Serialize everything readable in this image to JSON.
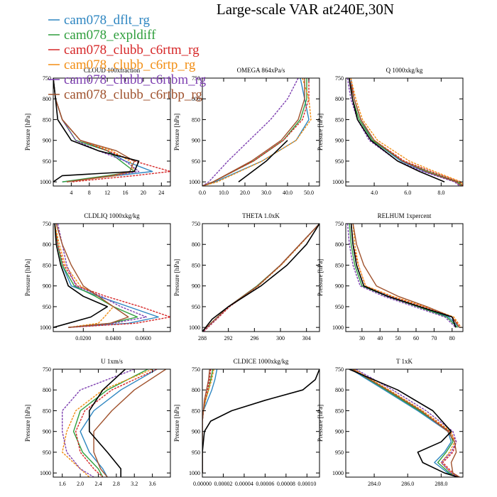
{
  "figure": {
    "title": "Large-scale VAR at240E,30N"
  },
  "legend": {
    "entries": [
      {
        "label": "cam078_dflt_rg",
        "color": "#2e86c1"
      },
      {
        "label": "cam078_expldiff",
        "color": "#2e9e3c"
      },
      {
        "label": "cam078_clubb_c6rtm_rg",
        "color": "#d62728"
      },
      {
        "label": "cam078_clubb_c6rtp_rg",
        "color": "#f28e14"
      },
      {
        "label": "cam078_clubb_c6rtbm_rg",
        "color": "#7d3fb0"
      },
      {
        "label": "cam078_clubb_c6rtbp_rg",
        "color": "#a0522d"
      }
    ],
    "obs_color": "#000000"
  },
  "chart_data": [
    {
      "type": "line",
      "title": "CLOUD 100xfraction",
      "ylabel": "Pressure [hPa]",
      "ylim": [
        750,
        1010
      ],
      "yticks": [
        750,
        800,
        850,
        900,
        950,
        1000
      ],
      "xlim": [
        0,
        26
      ],
      "xticks": [
        4,
        8,
        12,
        16,
        20,
        24
      ],
      "xtick_labels": [
        "4",
        "8",
        "12",
        "16",
        "20",
        "24"
      ],
      "levels": [
        750,
        800,
        850,
        900,
        925,
        950,
        975,
        985,
        1000
      ],
      "series": [
        {
          "values": [
            0,
            0.5,
            2,
            6,
            12,
            16,
            22,
            14,
            2
          ]
        },
        {
          "values": [
            0,
            0.5,
            2,
            5,
            12,
            15,
            18,
            12,
            2
          ]
        },
        {
          "values": [
            0,
            0.5,
            2,
            6,
            12,
            18,
            26,
            18,
            4
          ]
        },
        {
          "values": [
            0,
            0.5,
            2,
            6,
            13,
            17,
            18,
            14,
            3
          ]
        },
        {
          "values": [
            0,
            0.5,
            2,
            5,
            10,
            16,
            19,
            13,
            3
          ]
        },
        {
          "values": [
            0,
            0.5,
            2,
            6,
            14,
            18,
            17,
            13,
            3
          ]
        },
        {
          "values": [
            0,
            0.5,
            1,
            4,
            10,
            19,
            18,
            2,
            0
          ]
        }
      ]
    },
    {
      "type": "line",
      "title": "OMEGA 864xPa/s",
      "ylabel": "Pressure [hPa]",
      "ylim": [
        750,
        1010
      ],
      "yticks": [
        750,
        800,
        850,
        900,
        950,
        1000
      ],
      "xlim": [
        0,
        55
      ],
      "xticks": [
        0,
        10,
        20,
        30,
        40,
        50
      ],
      "xtick_labels": [
        "0.0",
        "10.0",
        "20.0",
        "30.0",
        "40.0",
        "50.0"
      ],
      "levels": [
        750,
        800,
        850,
        900,
        950,
        1000,
        1010
      ],
      "series": [
        {
          "values": [
            46,
            48,
            50,
            44,
            28,
            6,
            0
          ]
        },
        {
          "values": [
            49,
            49,
            46,
            38,
            24,
            5,
            0
          ]
        },
        {
          "values": [
            50,
            50,
            47,
            38,
            24,
            5,
            0
          ]
        },
        {
          "values": [
            47,
            50,
            51,
            44,
            28,
            7,
            0
          ]
        },
        {
          "values": [
            45,
            40,
            32,
            22,
            12,
            3,
            0
          ]
        },
        {
          "values": [
            48,
            48,
            45,
            37,
            23,
            5,
            0
          ]
        },
        {
          "values": [
            null,
            null,
            null,
            40,
            30,
            17,
            null
          ]
        }
      ]
    },
    {
      "type": "line",
      "title": "Q 1000xkg/kg",
      "ylabel": "Pressure [hPa]",
      "ylim": [
        750,
        1010
      ],
      "yticks": [
        750,
        800,
        850,
        900,
        950,
        1000
      ],
      "xlim": [
        2.3,
        9.3
      ],
      "xticks": [
        4,
        6,
        8
      ],
      "xtick_labels": [
        "4.0",
        "6.0",
        "8.0"
      ],
      "levels": [
        750,
        800,
        850,
        900,
        950,
        975,
        1000,
        1010
      ],
      "series": [
        {
          "values": [
            2.6,
            2.8,
            3.2,
            3.9,
            5.6,
            7.0,
            8.9,
            9.2
          ]
        },
        {
          "values": [
            2.5,
            2.7,
            3.1,
            3.9,
            5.7,
            7.2,
            9.0,
            9.3
          ]
        },
        {
          "values": [
            2.6,
            2.8,
            3.2,
            4.0,
            5.8,
            7.4,
            9.1,
            9.3
          ]
        },
        {
          "values": [
            2.6,
            2.9,
            3.3,
            4.2,
            6.1,
            7.6,
            9.2,
            9.3
          ]
        },
        {
          "values": [
            2.4,
            2.6,
            3.0,
            3.7,
            5.4,
            6.9,
            8.8,
            9.1
          ]
        },
        {
          "values": [
            2.5,
            2.8,
            3.2,
            4.0,
            5.7,
            7.1,
            8.9,
            9.2
          ]
        },
        {
          "values": [
            2.5,
            2.7,
            3.0,
            3.8,
            5.4,
            6.7,
            8.2,
            null
          ]
        }
      ]
    },
    {
      "type": "line",
      "title": "CLDLIQ 1000xkg/kg",
      "ylabel": "Pressure [hPa]",
      "ylim": [
        750,
        1010
      ],
      "yticks": [
        750,
        800,
        850,
        900,
        950,
        1000
      ],
      "xlim": [
        0,
        0.078
      ],
      "xticks": [
        0.02,
        0.04,
        0.06
      ],
      "xtick_labels": [
        "0.0200",
        "0.0400",
        "0.0600"
      ],
      "levels": [
        750,
        800,
        850,
        900,
        925,
        950,
        975,
        990,
        1000
      ],
      "series": [
        {
          "values": [
            0.001,
            0.003,
            0.006,
            0.012,
            0.03,
            0.05,
            0.07,
            0.05,
            0.01
          ]
        },
        {
          "values": [
            0.001,
            0.003,
            0.006,
            0.014,
            0.028,
            0.04,
            0.056,
            0.038,
            0.01
          ]
        },
        {
          "values": [
            0.001,
            0.003,
            0.007,
            0.016,
            0.035,
            0.058,
            0.078,
            0.055,
            0.01
          ]
        },
        {
          "values": [
            0.001,
            0.004,
            0.008,
            0.018,
            0.03,
            0.04,
            0.034,
            0.03,
            0.01
          ]
        },
        {
          "values": [
            0.003,
            0.006,
            0.009,
            0.015,
            0.032,
            0.045,
            0.062,
            0.04,
            0.01
          ]
        },
        {
          "values": [
            0.002,
            0.006,
            0.012,
            0.02,
            0.03,
            0.04,
            0.05,
            0.038,
            0.01
          ]
        },
        {
          "values": [
            0.001,
            0.002,
            0.005,
            0.01,
            0.02,
            0.036,
            0.025,
            0.01,
            0.0
          ]
        }
      ]
    },
    {
      "type": "line",
      "title": "THETA 1.0xK",
      "ylabel": "Pressure [hPa]",
      "ylim": [
        750,
        1010
      ],
      "yticks": [
        750,
        800,
        850,
        900,
        950,
        1000
      ],
      "xlim": [
        288,
        306
      ],
      "xticks": [
        288,
        292,
        296,
        300,
        304
      ],
      "xtick_labels": [
        "288",
        "292",
        "296",
        "300",
        "304"
      ],
      "levels": [
        750,
        800,
        850,
        900,
        950,
        980,
        1010
      ],
      "series": [
        {
          "values": [
            306,
            303,
            300,
            296.5,
            292,
            290,
            288
          ]
        },
        {
          "values": [
            306,
            303,
            300,
            296.4,
            292,
            290,
            288
          ]
        },
        {
          "values": [
            306,
            303,
            300,
            296.6,
            292.2,
            290.2,
            288.2
          ]
        },
        {
          "values": [
            306,
            303.1,
            300.1,
            296.6,
            292,
            290,
            288
          ]
        },
        {
          "values": [
            306,
            303,
            300,
            296.5,
            292,
            290.1,
            288.1
          ]
        },
        {
          "values": [
            306,
            303,
            300,
            296.5,
            292,
            290,
            288
          ]
        },
        {
          "values": [
            306,
            304,
            301,
            297,
            292,
            289.5,
            288
          ]
        }
      ]
    },
    {
      "type": "line",
      "title": "RELHUM 1xpercent",
      "ylabel": "Pressure [hPa]",
      "ylim": [
        750,
        1010
      ],
      "yticks": [
        750,
        800,
        850,
        900,
        950,
        1000
      ],
      "xlim": [
        21,
        86
      ],
      "xticks": [
        30,
        40,
        50,
        60,
        70,
        80
      ],
      "xtick_labels": [
        "30",
        "40",
        "50",
        "60",
        "70",
        "80"
      ],
      "levels": [
        750,
        800,
        850,
        900,
        925,
        950,
        975,
        1000
      ],
      "series": [
        {
          "values": [
            24,
            25,
            27,
            31,
            45,
            62,
            78,
            84
          ]
        },
        {
          "values": [
            23,
            24,
            26,
            30,
            44,
            61,
            77,
            83
          ]
        },
        {
          "values": [
            24,
            25,
            28,
            32,
            46,
            64,
            80,
            85
          ]
        },
        {
          "values": [
            25,
            26,
            28,
            32,
            47,
            65,
            81,
            85
          ]
        },
        {
          "values": [
            22,
            23,
            25,
            29,
            42,
            59,
            76,
            82
          ]
        },
        {
          "values": [
            25,
            27,
            31,
            38,
            50,
            66,
            80,
            84
          ]
        },
        {
          "values": [
            24,
            25,
            27,
            31,
            44,
            62,
            80,
            82
          ]
        }
      ]
    },
    {
      "type": "line",
      "title": "U 1xm/s",
      "ylabel": "Pressure [hPa]",
      "ylim": [
        750,
        1010
      ],
      "yticks": [
        750,
        800,
        850,
        900,
        950,
        1000
      ],
      "xlim": [
        1.4,
        4.0
      ],
      "xticks": [
        1.6,
        2.0,
        2.4,
        2.8,
        3.2,
        3.6
      ],
      "xtick_labels": [
        "1.6",
        "2.0",
        "2.4",
        "2.8",
        "3.2",
        "3.6"
      ],
      "levels": [
        750,
        800,
        850,
        900,
        950,
        990,
        1010
      ],
      "series": [
        {
          "values": [
            3.7,
            2.9,
            2.3,
            2.0,
            2.2,
            2.5,
            2.6
          ]
        },
        {
          "values": [
            3.5,
            2.6,
            2.0,
            1.85,
            2.05,
            2.4,
            2.5
          ]
        },
        {
          "values": [
            3.7,
            2.7,
            2.1,
            1.9,
            2.0,
            2.3,
            2.5
          ]
        },
        {
          "values": [
            3.6,
            2.5,
            1.9,
            1.7,
            1.6,
            2.0,
            2.2
          ]
        },
        {
          "values": [
            3.2,
            2.0,
            1.6,
            1.6,
            1.7,
            2.0,
            2.3
          ]
        },
        {
          "values": [
            3.9,
            3.2,
            2.7,
            2.3,
            2.3,
            2.45,
            2.6
          ]
        },
        {
          "values": [
            3.0,
            2.5,
            2.2,
            2.2,
            2.6,
            2.9,
            2.9
          ]
        }
      ]
    },
    {
      "type": "line",
      "title": "CLDICE 1000xkg/kg",
      "ylabel": "Pressure [hPa]",
      "ylim": [
        750,
        1010
      ],
      "yticks": [
        750,
        800,
        850,
        900,
        950,
        1000
      ],
      "xlim": [
        0,
        0.000112
      ],
      "xticks": [
        0,
        2e-05,
        4e-05,
        6e-05,
        8e-05,
        0.0001
      ],
      "xtick_labels": [
        "0.00000",
        "0.00002",
        "0.00004",
        "0.00006",
        "0.00008",
        "0.00010"
      ],
      "levels": [
        750,
        775,
        800,
        825,
        850,
        875,
        900,
        950,
        1000
      ],
      "series": [
        {
          "values": [
            1.4e-05,
            1.2e-05,
            9e-06,
            5e-06,
            1e-06,
            0,
            0,
            0,
            0
          ]
        },
        {
          "values": [
            1e-05,
            8e-06,
            6e-06,
            3e-06,
            1e-06,
            0,
            0,
            0,
            0
          ]
        },
        {
          "values": [
            8e-06,
            7e-06,
            5e-06,
            3e-06,
            1e-06,
            0,
            0,
            0,
            0
          ]
        },
        {
          "values": [
            1.1e-05,
            9e-06,
            6e-06,
            3e-06,
            1e-06,
            0,
            0,
            0,
            0
          ]
        },
        {
          "values": [
            7e-06,
            6e-06,
            4e-06,
            2e-06,
            1e-06,
            0,
            0,
            0,
            0
          ]
        },
        {
          "values": [
            7e-06,
            6e-06,
            4e-06,
            2e-06,
            1e-06,
            0,
            0,
            0,
            0
          ]
        },
        {
          "values": [
            0.000112,
            0.000108,
            9.6e-05,
            6e-05,
            2.8e-05,
            8e-06,
            2e-06,
            0,
            0
          ]
        }
      ]
    },
    {
      "type": "line",
      "title": "T 1xK",
      "ylabel": "Pressure [hPa]",
      "ylim": [
        750,
        1010
      ],
      "yticks": [
        750,
        800,
        850,
        900,
        950,
        1000
      ],
      "xlim": [
        282.3,
        289.3
      ],
      "xticks": [
        284,
        286,
        288
      ],
      "xtick_labels": [
        "284.0",
        "286.0",
        "288.0"
      ],
      "levels": [
        750,
        800,
        850,
        900,
        925,
        950,
        975,
        1000,
        1010
      ],
      "series": [
        {
          "values": [
            282.6,
            284.6,
            286.6,
            288.4,
            288.6,
            288.2,
            287.6,
            288.4,
            289.0
          ]
        },
        {
          "values": [
            282.7,
            284.7,
            286.7,
            288.5,
            288.7,
            288.3,
            287.8,
            288.5,
            289.0
          ]
        },
        {
          "values": [
            282.8,
            284.8,
            286.8,
            288.5,
            288.9,
            288.7,
            288.1,
            288.7,
            289.1
          ]
        },
        {
          "values": [
            282.8,
            284.9,
            286.9,
            288.6,
            288.8,
            288.5,
            288.0,
            288.6,
            289.0
          ]
        },
        {
          "values": [
            282.9,
            285.1,
            287.1,
            288.7,
            288.9,
            288.6,
            288.0,
            288.6,
            289.0
          ]
        },
        {
          "values": [
            282.7,
            284.8,
            286.8,
            288.4,
            288.8,
            288.9,
            288.6,
            288.7,
            289.1
          ]
        },
        {
          "values": [
            282.5,
            285.4,
            287.5,
            288.6,
            288.0,
            286.6,
            286.9,
            288.2,
            289.0
          ]
        }
      ]
    }
  ]
}
